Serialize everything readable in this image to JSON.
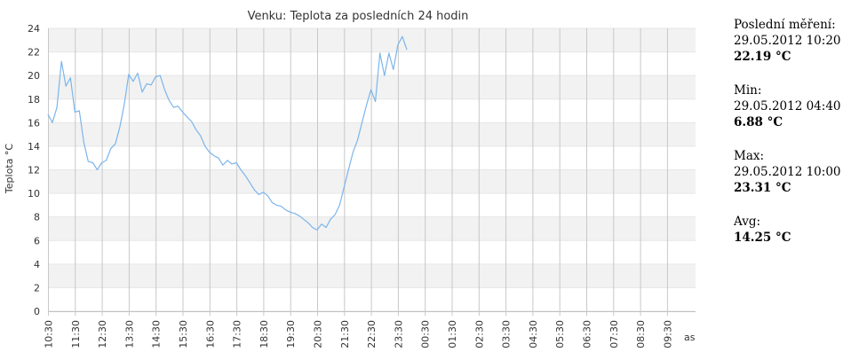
{
  "stats": {
    "last": {
      "label": "Poslední měření:",
      "date": "29.05.2012 10:20",
      "value": "22.19 °C"
    },
    "min": {
      "label": "Min:",
      "date": "29.05.2012 04:40",
      "value": "6.88 °C"
    },
    "max": {
      "label": "Max:",
      "date": "29.05.2012 10:00",
      "value": "23.31 °C"
    },
    "avg": {
      "label": "Avg:",
      "value": "14.25 °C"
    }
  },
  "chart_data": {
    "type": "line",
    "title": "Venku: Teplota za posledních 24 hodin",
    "ylabel": "Teplota °C",
    "xlabel": "as",
    "ylim": [
      0,
      24
    ],
    "yticks": [
      "0",
      "2",
      "4",
      "6",
      "8",
      "10",
      "12",
      "14",
      "16",
      "18",
      "20",
      "22",
      "24"
    ],
    "xticks": [
      "10:30",
      "11:30",
      "12:30",
      "13:30",
      "14:30",
      "15:30",
      "16:30",
      "17:30",
      "18:30",
      "19:30",
      "20:30",
      "21:30",
      "22:30",
      "23:30",
      "00:30",
      "01:30",
      "02:30",
      "03:30",
      "04:30",
      "05:30",
      "06:30",
      "07:30",
      "08:30",
      "09:30"
    ],
    "x_interval_minutes": 10,
    "grid": true,
    "line_color": "#7cb5ec",
    "band_color": "#f2f2f2",
    "series": [
      {
        "values": [
          16.7,
          16.0,
          17.3,
          21.2,
          19.1,
          19.8,
          16.9,
          17.0,
          14.3,
          12.7,
          12.6,
          12.0,
          12.6,
          12.8,
          13.8,
          14.2,
          15.6,
          17.5,
          20.1,
          19.5,
          20.2,
          18.6,
          19.3,
          19.2,
          19.9,
          20.0,
          18.8,
          17.9,
          17.3,
          17.4,
          16.9,
          16.5,
          16.1,
          15.4,
          14.9,
          14.0,
          13.5,
          13.2,
          13.0,
          12.4,
          12.8,
          12.5,
          12.6,
          12.0,
          11.5,
          10.9,
          10.3,
          9.9,
          10.1,
          9.8,
          9.2,
          9.0,
          8.9,
          8.6,
          8.4,
          8.3,
          8.1,
          7.8,
          7.5,
          7.1,
          6.9,
          7.4,
          7.1,
          7.8,
          8.2,
          9.0,
          10.5,
          12.0,
          13.5,
          14.5,
          16.0,
          17.5,
          18.8,
          17.8,
          21.9,
          20.0,
          21.9,
          20.5,
          22.6,
          23.31,
          22.19
        ]
      }
    ]
  }
}
